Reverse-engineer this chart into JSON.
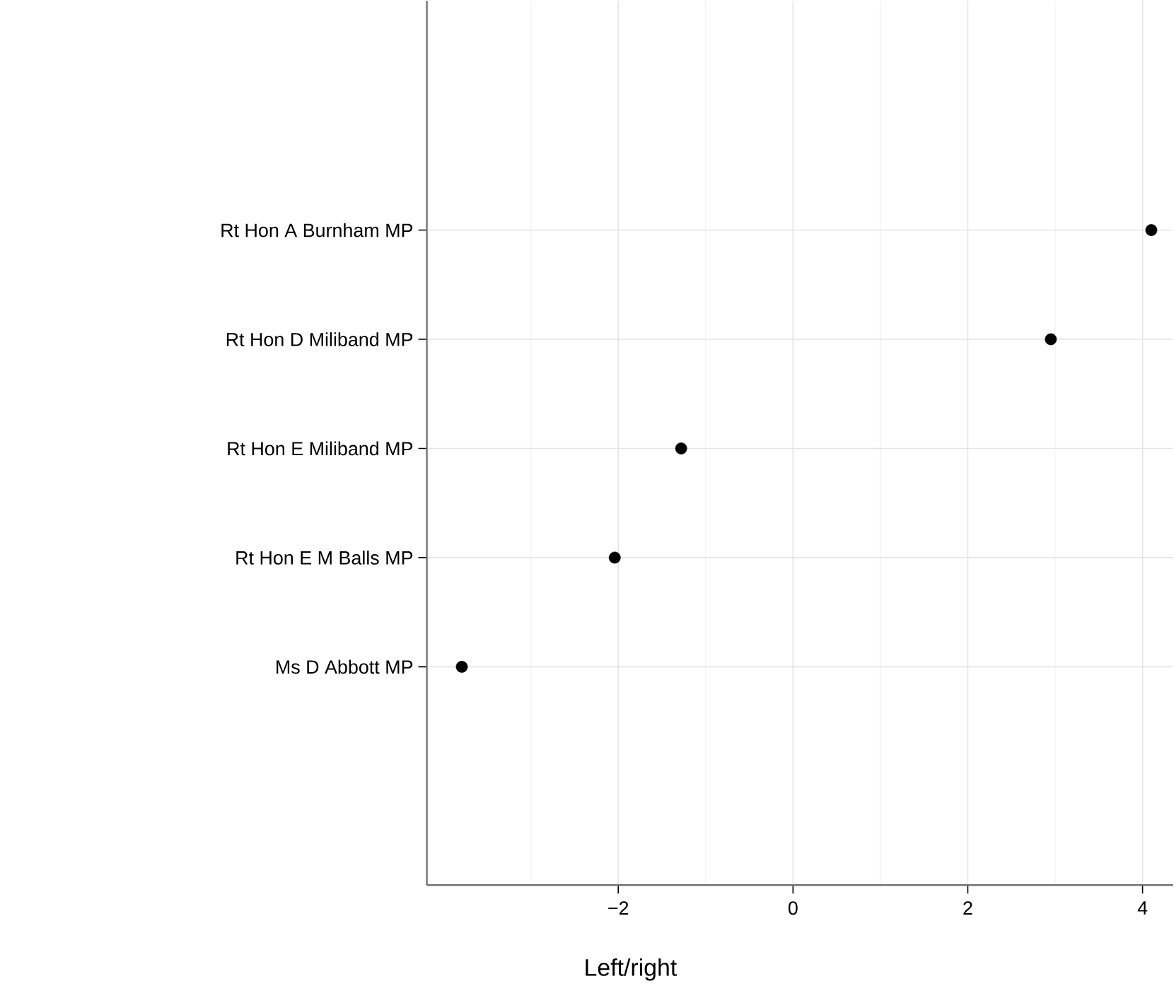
{
  "chart_data": {
    "type": "scatter",
    "xlabel": "Left/right",
    "categories": [
      "Rt Hon A Burnham MP",
      "Rt Hon D Miliband MP",
      "Rt Hon E Miliband MP",
      "Rt Hon E M Balls MP",
      "Ms D Abbott MP"
    ],
    "values": [
      4.1,
      2.95,
      -1.28,
      -2.04,
      -3.79
    ],
    "color": "#000000",
    "xlim": [
      -4.19,
      4.35
    ],
    "xticks": [
      {
        "value": -2,
        "label": "−2"
      },
      0,
      2,
      4
    ],
    "grid": true,
    "marker": "circle",
    "orientation": "horizontal"
  }
}
